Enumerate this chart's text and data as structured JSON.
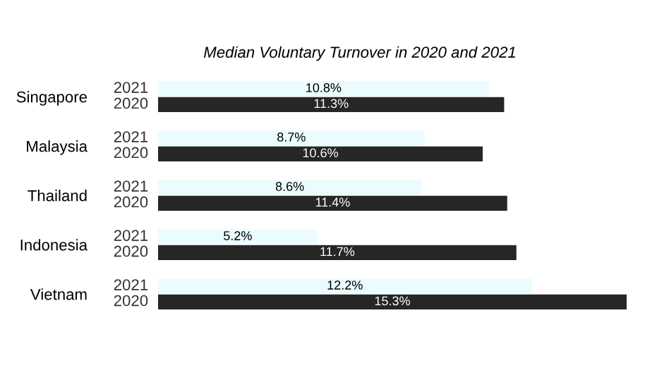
{
  "chart_data": {
    "type": "bar",
    "orientation": "horizontal",
    "title": "Median Voluntary Turnover in 2020 and 2021",
    "categories": [
      "Singapore",
      "Malaysia",
      "Thailand",
      "Indonesia",
      "Vietnam"
    ],
    "series": [
      {
        "name": "2021",
        "color": "#eafcfd",
        "values": [
          10.8,
          8.7,
          8.6,
          5.2,
          12.2
        ],
        "value_labels": [
          "10.8%",
          "8.7%",
          "8.6%",
          "5.2%",
          "12.2%"
        ]
      },
      {
        "name": "2020",
        "color": "#262626",
        "values": [
          11.3,
          10.6,
          11.4,
          11.7,
          15.3
        ],
        "value_labels": [
          "11.3%",
          "10.6%",
          "11.4%",
          "11.7%",
          "15.3%"
        ]
      }
    ],
    "legend": false,
    "grid": false
  }
}
